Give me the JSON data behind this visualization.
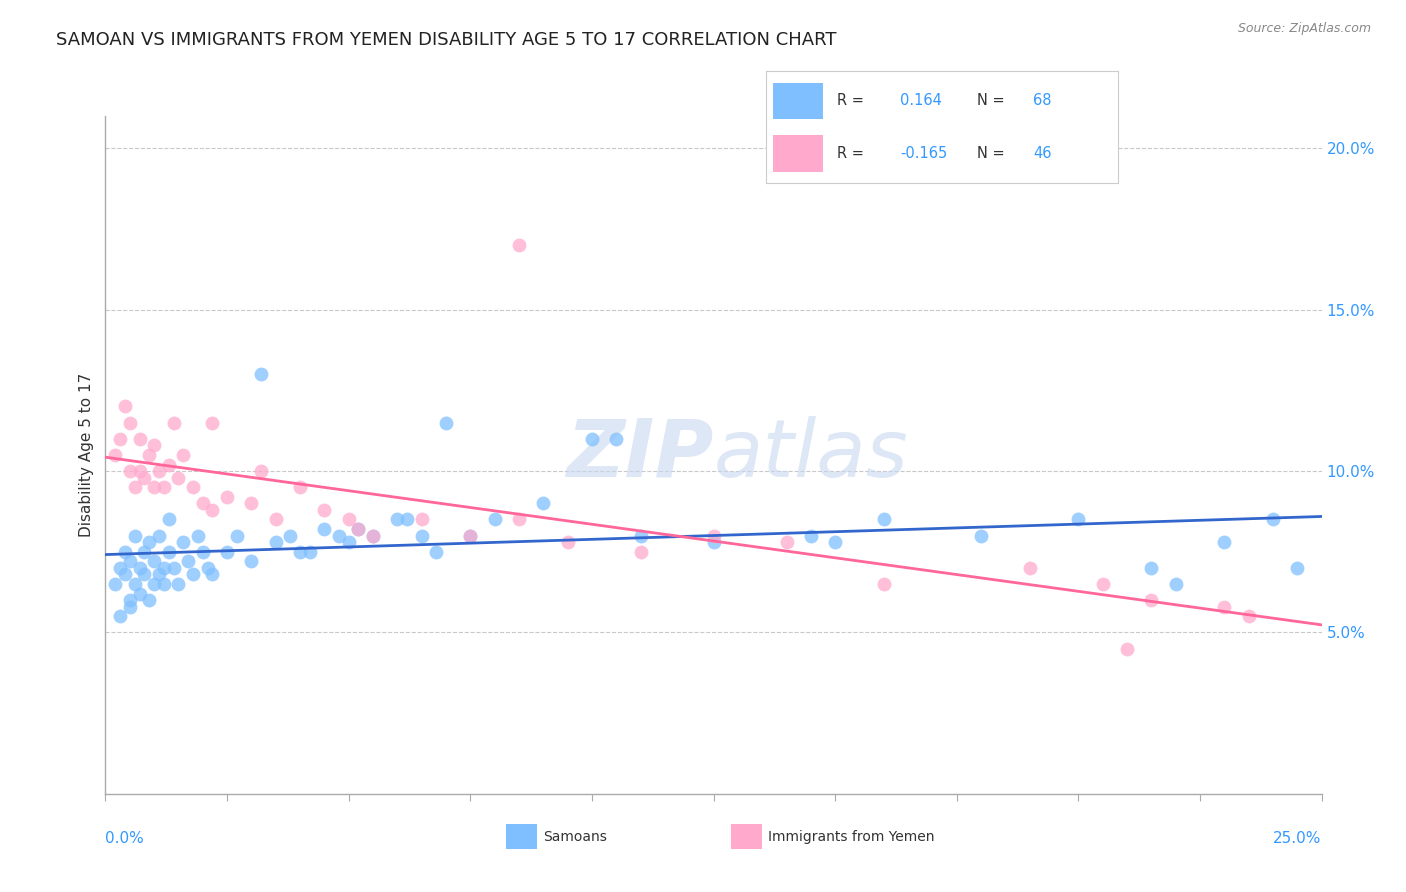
{
  "title": "SAMOAN VS IMMIGRANTS FROM YEMEN DISABILITY AGE 5 TO 17 CORRELATION CHART",
  "source": "Source: ZipAtlas.com",
  "watermark": "ZIPatlas",
  "color_blue": "#7fbfff",
  "color_pink": "#ffaacc",
  "color_blue_line": "#3366cc",
  "color_pink_line": "#ff6699",
  "color_blue_label": "#3399ff",
  "color_pink_label": "#3399ff",
  "ylim": [
    0.0,
    21.0
  ],
  "xlim": [
    0.0,
    25.0
  ],
  "yticks": [
    5,
    10,
    15,
    20
  ],
  "ytick_labels": [
    "5.0%",
    "10.0%",
    "15.0%",
    "20.0%"
  ],
  "samoans_x": [
    0.2,
    0.3,
    0.3,
    0.4,
    0.4,
    0.5,
    0.5,
    0.5,
    0.6,
    0.6,
    0.7,
    0.7,
    0.8,
    0.8,
    0.9,
    0.9,
    1.0,
    1.0,
    1.1,
    1.1,
    1.2,
    1.2,
    1.3,
    1.3,
    1.4,
    1.5,
    1.6,
    1.7,
    1.8,
    1.9,
    2.0,
    2.1,
    2.2,
    2.5,
    2.7,
    3.0,
    3.5,
    3.8,
    4.0,
    4.5,
    5.0,
    5.5,
    6.0,
    6.5,
    7.0,
    7.5,
    8.0,
    9.0,
    10.0,
    10.5,
    11.0,
    12.5,
    14.5,
    15.0,
    16.0,
    18.0,
    20.0,
    21.5,
    22.0,
    23.0,
    24.0,
    24.5,
    3.2,
    4.2,
    4.8,
    5.2,
    6.2,
    6.8
  ],
  "samoans_y": [
    6.5,
    7.0,
    5.5,
    6.8,
    7.5,
    6.0,
    7.2,
    5.8,
    6.5,
    8.0,
    6.2,
    7.0,
    6.8,
    7.5,
    6.0,
    7.8,
    6.5,
    7.2,
    6.8,
    8.0,
    7.0,
    6.5,
    7.5,
    8.5,
    7.0,
    6.5,
    7.8,
    7.2,
    6.8,
    8.0,
    7.5,
    7.0,
    6.8,
    7.5,
    8.0,
    7.2,
    7.8,
    8.0,
    7.5,
    8.2,
    7.8,
    8.0,
    8.5,
    8.0,
    11.5,
    8.0,
    8.5,
    9.0,
    11.0,
    11.0,
    8.0,
    7.8,
    8.0,
    7.8,
    8.5,
    8.0,
    8.5,
    7.0,
    6.5,
    7.8,
    8.5,
    7.0,
    13.0,
    7.5,
    8.0,
    8.2,
    8.5,
    7.5
  ],
  "yemen_x": [
    0.2,
    0.3,
    0.4,
    0.5,
    0.5,
    0.6,
    0.7,
    0.7,
    0.8,
    0.9,
    1.0,
    1.0,
    1.1,
    1.2,
    1.3,
    1.4,
    1.5,
    1.6,
    1.8,
    2.0,
    2.2,
    2.5,
    3.0,
    3.5,
    4.0,
    4.5,
    5.0,
    5.5,
    6.5,
    7.5,
    8.5,
    9.5,
    11.0,
    12.5,
    14.0,
    16.0,
    19.0,
    20.5,
    21.5,
    23.0,
    23.5,
    8.5,
    5.2,
    3.2,
    2.2,
    21.0
  ],
  "yemen_y": [
    10.5,
    11.0,
    12.0,
    11.5,
    10.0,
    9.5,
    11.0,
    10.0,
    9.8,
    10.5,
    9.5,
    10.8,
    10.0,
    9.5,
    10.2,
    11.5,
    9.8,
    10.5,
    9.5,
    9.0,
    8.8,
    9.2,
    9.0,
    8.5,
    9.5,
    8.8,
    8.5,
    8.0,
    8.5,
    8.0,
    8.5,
    7.8,
    7.5,
    8.0,
    7.8,
    6.5,
    7.0,
    6.5,
    6.0,
    5.8,
    5.5,
    17.0,
    8.2,
    10.0,
    11.5,
    4.5
  ]
}
